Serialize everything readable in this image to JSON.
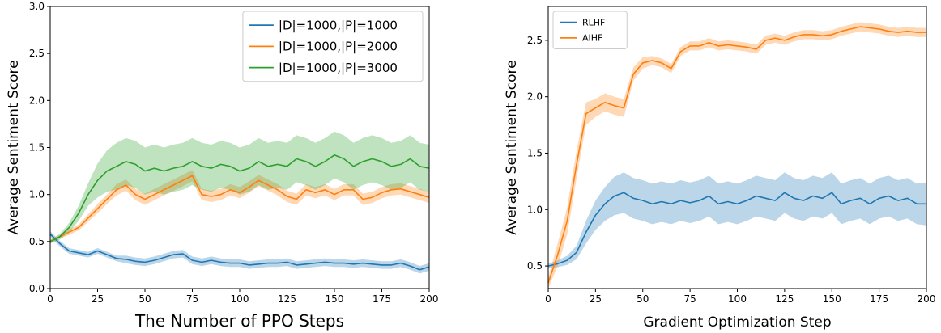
{
  "chart_data": [
    {
      "type": "line",
      "title": "",
      "xlabel": "The Number of PPO Steps",
      "ylabel": "Average Sentiment Score",
      "xlim": [
        0,
        200
      ],
      "ylim": [
        0,
        3.0
      ],
      "xticks": [
        0,
        25,
        50,
        75,
        100,
        125,
        150,
        175,
        200
      ],
      "yticks": [
        "0.0",
        "0.5",
        "1.0",
        "1.5",
        "2.0",
        "2.5",
        "3.0"
      ],
      "legend": "top-right",
      "grid": false,
      "x": [
        0,
        5,
        10,
        15,
        20,
        25,
        30,
        35,
        40,
        45,
        50,
        55,
        60,
        65,
        70,
        75,
        80,
        85,
        90,
        95,
        100,
        105,
        110,
        115,
        120,
        125,
        130,
        135,
        140,
        145,
        150,
        155,
        160,
        165,
        170,
        175,
        180,
        185,
        190,
        195,
        200
      ],
      "series": [
        {
          "name": "|D|=1000,|P|=1000",
          "color": "#1f77b4",
          "values": [
            0.58,
            0.48,
            0.4,
            0.38,
            0.36,
            0.4,
            0.36,
            0.32,
            0.31,
            0.29,
            0.28,
            0.3,
            0.33,
            0.36,
            0.37,
            0.3,
            0.28,
            0.3,
            0.28,
            0.27,
            0.27,
            0.25,
            0.26,
            0.27,
            0.27,
            0.28,
            0.25,
            0.26,
            0.27,
            0.28,
            0.27,
            0.27,
            0.26,
            0.27,
            0.26,
            0.25,
            0.25,
            0.27,
            0.24,
            0.2,
            0.23
          ],
          "band": [
            0.03,
            0.03,
            0.03,
            0.03,
            0.03,
            0.03,
            0.03,
            0.03,
            0.04,
            0.04,
            0.04,
            0.04,
            0.04,
            0.04,
            0.04,
            0.04,
            0.04,
            0.04,
            0.04,
            0.04,
            0.04,
            0.04,
            0.04,
            0.04,
            0.04,
            0.04,
            0.04,
            0.04,
            0.04,
            0.04,
            0.04,
            0.04,
            0.04,
            0.04,
            0.04,
            0.04,
            0.04,
            0.04,
            0.04,
            0.04,
            0.04
          ]
        },
        {
          "name": "|D|=1000,|P|=2000",
          "color": "#ff7f0e",
          "values": [
            0.5,
            0.55,
            0.6,
            0.65,
            0.75,
            0.85,
            0.95,
            1.05,
            1.1,
            1.0,
            0.95,
            1.0,
            1.05,
            1.1,
            1.15,
            1.2,
            1.0,
            0.98,
            1.0,
            1.05,
            1.02,
            1.08,
            1.15,
            1.1,
            1.05,
            0.98,
            0.95,
            1.05,
            1.02,
            1.05,
            1.0,
            1.05,
            1.05,
            0.95,
            0.97,
            1.02,
            1.05,
            1.06,
            1.03,
            1.0,
            0.97
          ],
          "band": [
            0.02,
            0.02,
            0.03,
            0.03,
            0.04,
            0.05,
            0.05,
            0.06,
            0.06,
            0.06,
            0.06,
            0.06,
            0.06,
            0.06,
            0.06,
            0.06,
            0.06,
            0.06,
            0.06,
            0.06,
            0.06,
            0.06,
            0.06,
            0.06,
            0.06,
            0.06,
            0.06,
            0.06,
            0.06,
            0.06,
            0.06,
            0.06,
            0.06,
            0.06,
            0.06,
            0.06,
            0.06,
            0.06,
            0.06,
            0.06,
            0.06
          ]
        },
        {
          "name": "|D|=1000,|P|=3000",
          "color": "#2ca02c",
          "values": [
            0.5,
            0.55,
            0.65,
            0.8,
            1.0,
            1.15,
            1.25,
            1.3,
            1.35,
            1.32,
            1.25,
            1.28,
            1.25,
            1.28,
            1.3,
            1.35,
            1.3,
            1.28,
            1.32,
            1.3,
            1.25,
            1.28,
            1.35,
            1.3,
            1.32,
            1.3,
            1.38,
            1.35,
            1.3,
            1.35,
            1.42,
            1.38,
            1.3,
            1.35,
            1.38,
            1.35,
            1.3,
            1.32,
            1.38,
            1.3,
            1.28
          ],
          "band": [
            0.02,
            0.03,
            0.05,
            0.08,
            0.12,
            0.18,
            0.22,
            0.25,
            0.25,
            0.25,
            0.25,
            0.25,
            0.25,
            0.25,
            0.25,
            0.25,
            0.25,
            0.25,
            0.25,
            0.25,
            0.25,
            0.25,
            0.25,
            0.25,
            0.25,
            0.25,
            0.25,
            0.25,
            0.25,
            0.25,
            0.25,
            0.25,
            0.25,
            0.25,
            0.25,
            0.25,
            0.25,
            0.25,
            0.25,
            0.25,
            0.25
          ]
        }
      ]
    },
    {
      "type": "line",
      "title": "",
      "xlabel": "Gradient Optimization Step",
      "ylabel": "Average Sentiment Score",
      "xlim": [
        0,
        200
      ],
      "ylim": [
        0.3,
        2.8
      ],
      "xticks": [
        0,
        25,
        50,
        75,
        100,
        125,
        150,
        175,
        200
      ],
      "yticks": [
        "0.5",
        "1.0",
        "1.5",
        "2.0",
        "2.5"
      ],
      "legend": "top-left",
      "grid": false,
      "x": [
        0,
        5,
        10,
        15,
        20,
        25,
        30,
        35,
        40,
        45,
        50,
        55,
        60,
        65,
        70,
        75,
        80,
        85,
        90,
        95,
        100,
        105,
        110,
        115,
        120,
        125,
        130,
        135,
        140,
        145,
        150,
        155,
        160,
        165,
        170,
        175,
        180,
        185,
        190,
        195,
        200
      ],
      "series": [
        {
          "name": "RLHF",
          "color": "#1f77b4",
          "values": [
            0.5,
            0.52,
            0.55,
            0.62,
            0.8,
            0.95,
            1.05,
            1.12,
            1.15,
            1.1,
            1.08,
            1.05,
            1.07,
            1.05,
            1.08,
            1.06,
            1.08,
            1.12,
            1.05,
            1.07,
            1.05,
            1.08,
            1.12,
            1.1,
            1.08,
            1.15,
            1.1,
            1.08,
            1.12,
            1.1,
            1.15,
            1.05,
            1.08,
            1.1,
            1.05,
            1.1,
            1.12,
            1.08,
            1.1,
            1.05,
            1.05
          ],
          "band": [
            0.02,
            0.03,
            0.04,
            0.06,
            0.1,
            0.13,
            0.15,
            0.17,
            0.18,
            0.18,
            0.18,
            0.18,
            0.18,
            0.18,
            0.18,
            0.18,
            0.18,
            0.18,
            0.18,
            0.18,
            0.18,
            0.18,
            0.18,
            0.18,
            0.18,
            0.18,
            0.18,
            0.18,
            0.18,
            0.18,
            0.18,
            0.18,
            0.18,
            0.18,
            0.18,
            0.18,
            0.18,
            0.18,
            0.18,
            0.18,
            0.19
          ]
        },
        {
          "name": "AIHF",
          "color": "#ff7f0e",
          "values": [
            0.35,
            0.6,
            0.9,
            1.4,
            1.85,
            1.9,
            1.95,
            1.92,
            1.9,
            2.2,
            2.3,
            2.32,
            2.3,
            2.25,
            2.4,
            2.45,
            2.45,
            2.48,
            2.45,
            2.46,
            2.45,
            2.44,
            2.42,
            2.5,
            2.52,
            2.5,
            2.53,
            2.55,
            2.55,
            2.54,
            2.55,
            2.58,
            2.6,
            2.62,
            2.61,
            2.6,
            2.58,
            2.57,
            2.58,
            2.57,
            2.57
          ],
          "band": [
            0.05,
            0.1,
            0.12,
            0.12,
            0.1,
            0.08,
            0.08,
            0.08,
            0.08,
            0.06,
            0.05,
            0.04,
            0.04,
            0.04,
            0.04,
            0.04,
            0.04,
            0.04,
            0.04,
            0.04,
            0.04,
            0.04,
            0.04,
            0.04,
            0.04,
            0.04,
            0.04,
            0.04,
            0.04,
            0.04,
            0.04,
            0.04,
            0.04,
            0.04,
            0.04,
            0.04,
            0.04,
            0.04,
            0.04,
            0.04,
            0.04
          ]
        }
      ]
    }
  ]
}
